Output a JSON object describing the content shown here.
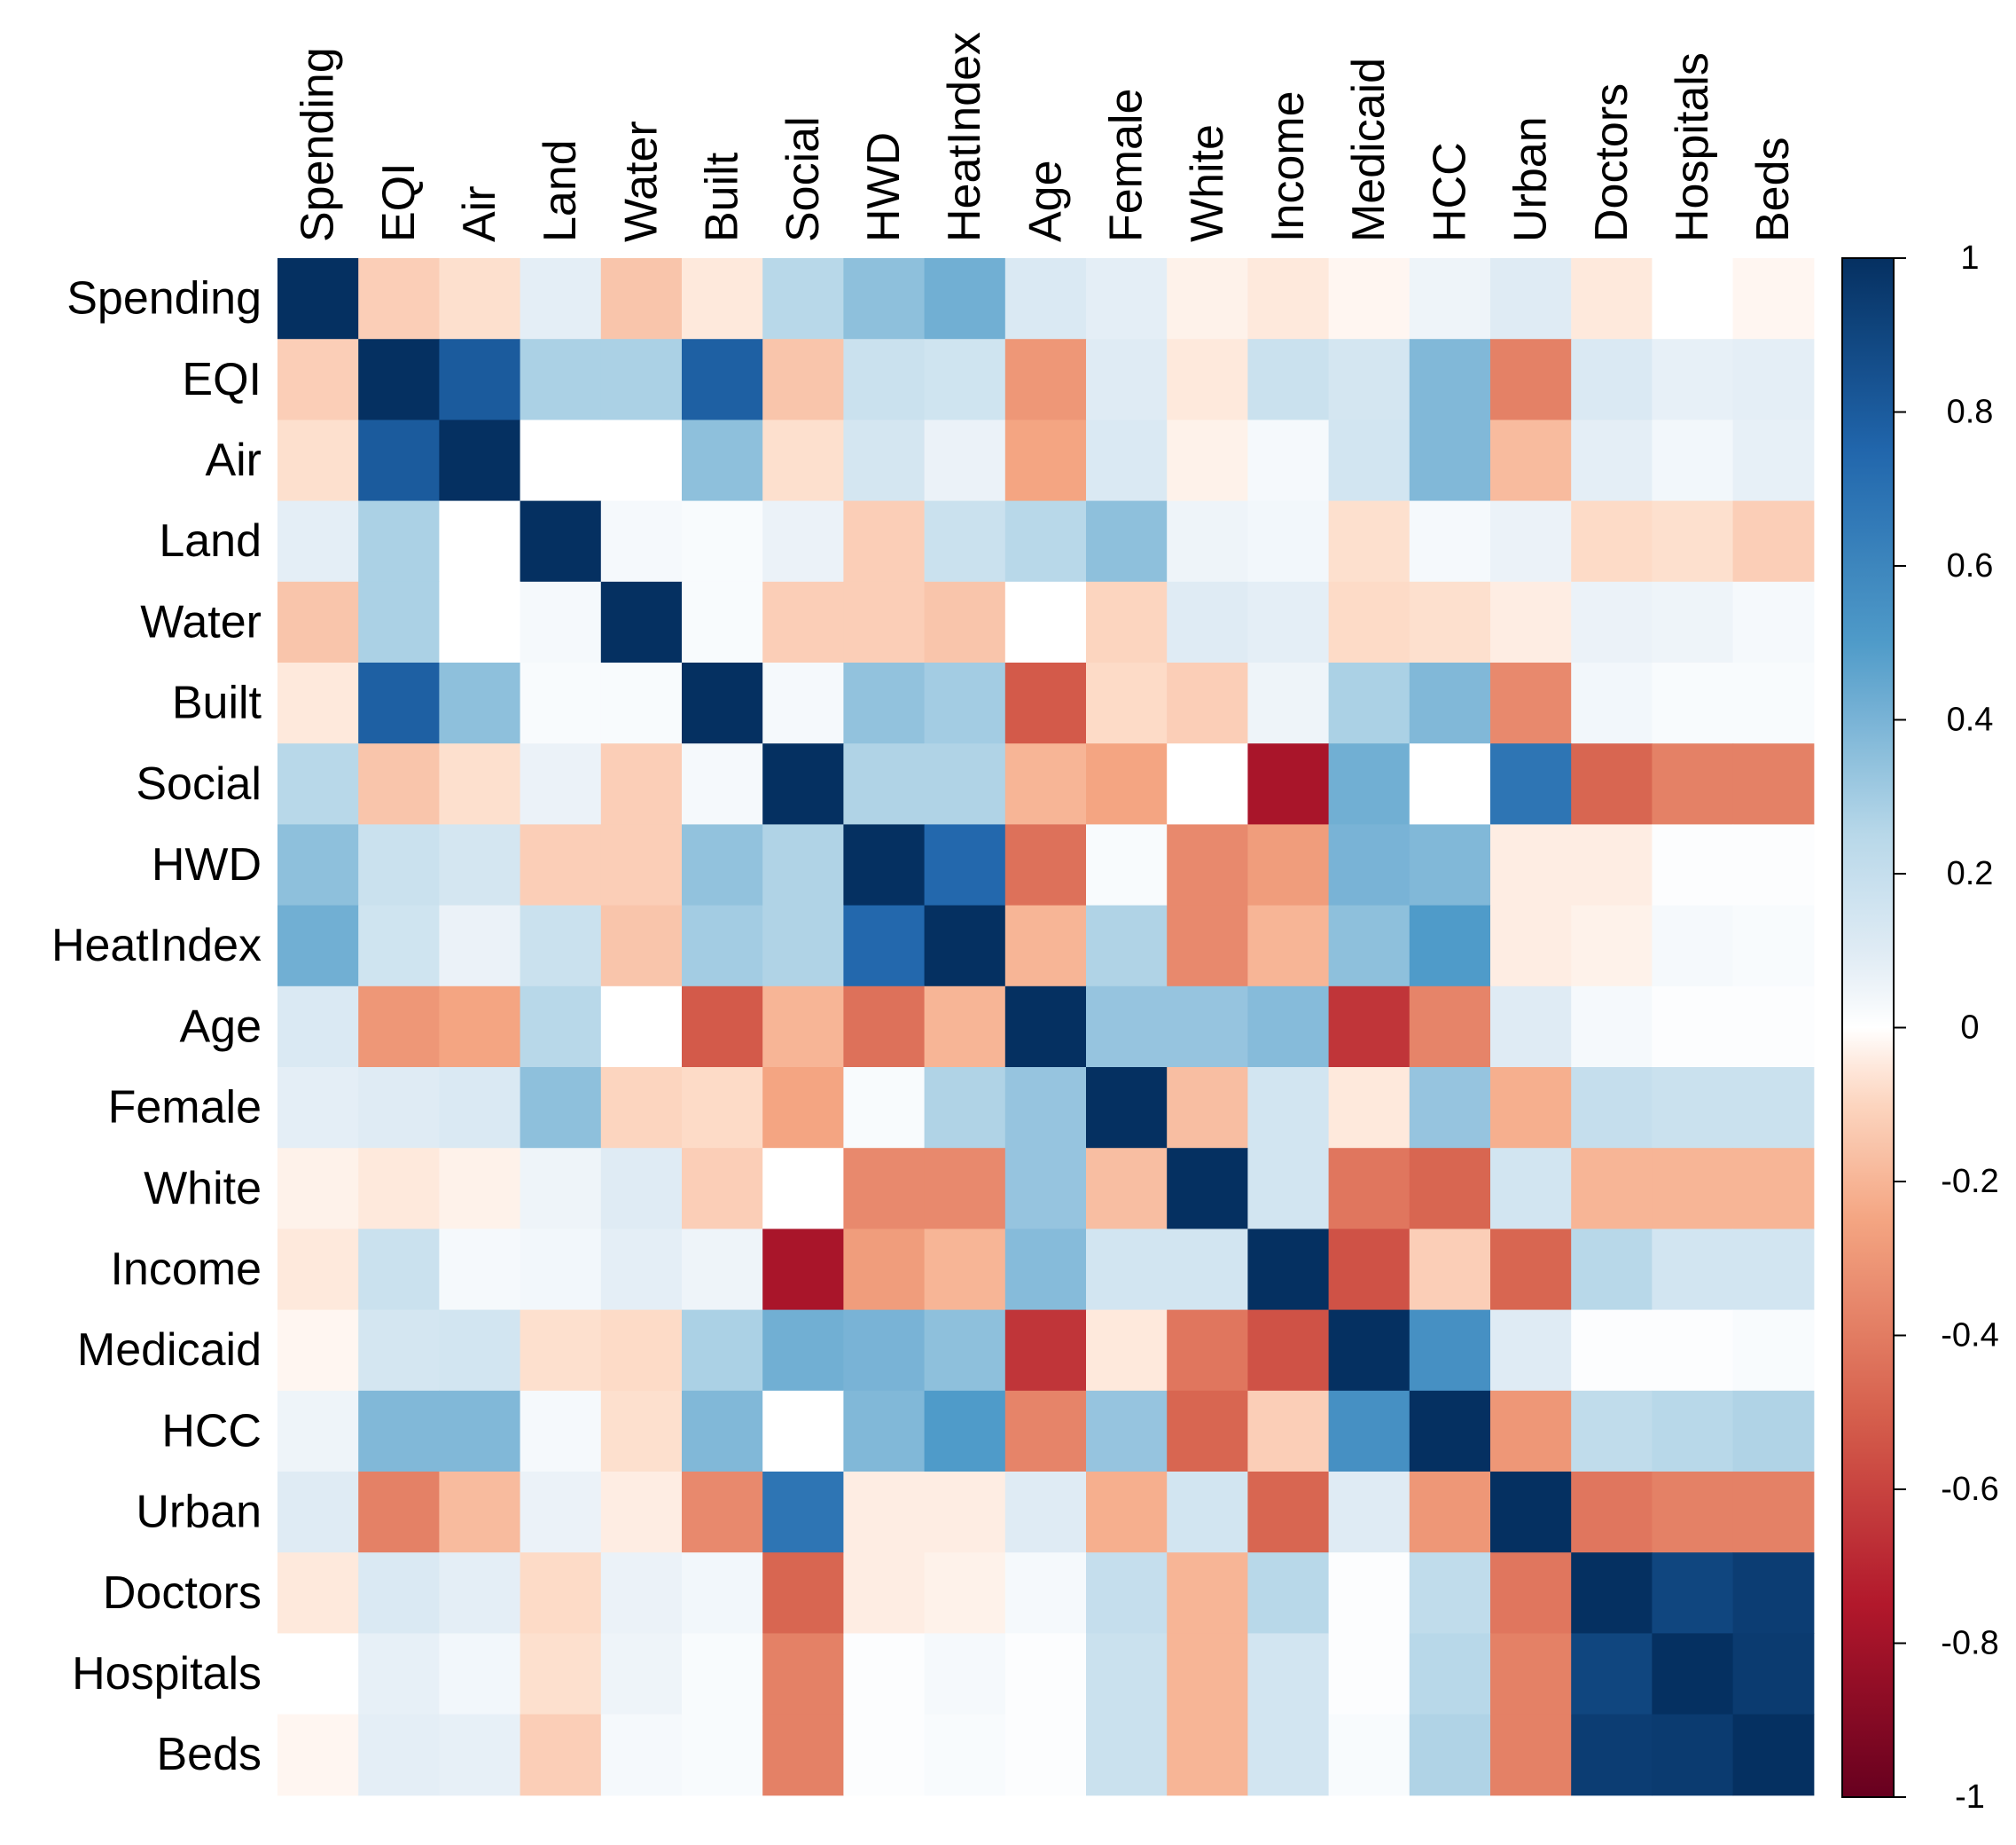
{
  "chart_data": {
    "type": "heatmap",
    "title": "",
    "variables": [
      "Spending",
      "EQI",
      "Air",
      "Land",
      "Water",
      "Built",
      "Social",
      "HWD",
      "HeatIndex",
      "Age",
      "Female",
      "White",
      "Income",
      "Medicaid",
      "HCC",
      "Urban",
      "Doctors",
      "Hospitals",
      "Beds"
    ],
    "matrix": [
      [
        1,
        -0.12,
        -0.07,
        0.08,
        -0.15,
        -0.05,
        0.25,
        0.35,
        0.42,
        0.12,
        0.08,
        -0.03,
        -0.05,
        -0.02,
        0.05,
        0.1,
        -0.05,
        0,
        -0.02
      ],
      [
        -0.12,
        1,
        0.8,
        0.28,
        0.28,
        0.78,
        -0.15,
        0.18,
        0.16,
        -0.3,
        0.1,
        -0.05,
        0.18,
        0.14,
        0.38,
        -0.38,
        0.12,
        0.07,
        0.08
      ],
      [
        -0.07,
        0.8,
        1,
        0,
        0,
        0.35,
        -0.07,
        0.14,
        0.06,
        -0.25,
        0.12,
        -0.03,
        0.03,
        0.15,
        0.38,
        -0.18,
        0.08,
        0.04,
        0.07
      ],
      [
        0.08,
        0.28,
        0,
        1,
        0.03,
        0.02,
        0.06,
        -0.12,
        0.18,
        0.25,
        0.35,
        0.05,
        0.04,
        -0.07,
        0.03,
        0.06,
        -0.08,
        -0.07,
        -0.12
      ],
      [
        -0.15,
        0.28,
        0,
        0.03,
        1,
        0.02,
        -0.12,
        -0.12,
        -0.15,
        0,
        -0.1,
        0.1,
        0.08,
        -0.08,
        -0.07,
        -0.04,
        0.06,
        0.05,
        0.03
      ],
      [
        -0.05,
        0.78,
        0.35,
        0.02,
        0.02,
        1,
        0.03,
        0.34,
        0.3,
        -0.52,
        -0.08,
        -0.12,
        0.05,
        0.28,
        0.38,
        -0.35,
        0.04,
        0.02,
        0.02
      ],
      [
        0.25,
        -0.15,
        -0.07,
        0.06,
        -0.12,
        0.03,
        1,
        0.27,
        0.27,
        -0.2,
        -0.25,
        0,
        -0.78,
        0.42,
        0,
        0.68,
        -0.48,
        -0.38,
        -0.38
      ],
      [
        0.35,
        0.18,
        0.14,
        -0.12,
        -0.12,
        0.34,
        0.27,
        1,
        0.74,
        -0.44,
        0.02,
        -0.35,
        -0.28,
        0.4,
        0.38,
        -0.04,
        -0.04,
        0.01,
        0.01
      ],
      [
        0.42,
        0.16,
        0.06,
        0.18,
        -0.15,
        0.3,
        0.27,
        0.74,
        1,
        -0.2,
        0.27,
        -0.35,
        -0.2,
        0.35,
        0.5,
        -0.04,
        -0.03,
        0.03,
        0.02
      ],
      [
        0.12,
        -0.3,
        -0.25,
        0.25,
        0,
        -0.52,
        -0.2,
        -0.44,
        -0.2,
        1,
        0.33,
        0.33,
        0.37,
        -0.65,
        -0.37,
        0.1,
        0.03,
        0.01,
        0.01
      ],
      [
        0.08,
        0.1,
        0.12,
        0.35,
        -0.1,
        -0.08,
        -0.25,
        0.02,
        0.27,
        0.33,
        1,
        -0.17,
        0.15,
        -0.05,
        0.33,
        -0.22,
        0.2,
        0.18,
        0.18
      ],
      [
        -0.03,
        -0.05,
        -0.03,
        0.05,
        0.1,
        -0.12,
        0,
        -0.35,
        -0.35,
        0.33,
        -0.17,
        1,
        0.15,
        -0.42,
        -0.48,
        0.15,
        -0.2,
        -0.2,
        -0.2
      ],
      [
        -0.05,
        0.18,
        0.03,
        0.04,
        0.08,
        0.05,
        -0.78,
        -0.28,
        -0.2,
        0.37,
        0.15,
        0.15,
        1,
        -0.55,
        -0.12,
        -0.48,
        0.25,
        0.15,
        0.15
      ],
      [
        -0.02,
        0.14,
        0.15,
        -0.07,
        -0.08,
        0.28,
        0.42,
        0.4,
        0.35,
        -0.65,
        -0.05,
        -0.42,
        -0.55,
        1,
        0.55,
        0.1,
        0.01,
        0.01,
        0.02
      ],
      [
        0.05,
        0.38,
        0.38,
        0.03,
        -0.07,
        0.38,
        0,
        0.38,
        0.5,
        -0.37,
        0.33,
        -0.48,
        -0.12,
        0.55,
        1,
        -0.3,
        0.22,
        0.25,
        0.27
      ],
      [
        0.1,
        -0.38,
        -0.18,
        0.06,
        -0.04,
        -0.35,
        0.68,
        -0.04,
        -0.04,
        0.1,
        -0.22,
        0.15,
        -0.48,
        0.1,
        -0.3,
        1,
        -0.42,
        -0.38,
        -0.38
      ],
      [
        -0.05,
        0.12,
        0.08,
        -0.08,
        0.06,
        0.04,
        -0.48,
        -0.04,
        -0.03,
        0.03,
        0.2,
        -0.2,
        0.25,
        0.01,
        0.22,
        -0.42,
        1,
        0.9,
        0.94
      ],
      [
        0,
        0.07,
        0.04,
        -0.07,
        0.05,
        0.02,
        -0.38,
        0.01,
        0.03,
        0.01,
        0.18,
        -0.2,
        0.15,
        0.01,
        0.25,
        -0.38,
        0.9,
        1,
        0.95
      ],
      [
        -0.02,
        0.08,
        0.07,
        -0.12,
        0.03,
        0.02,
        -0.38,
        0.01,
        0.02,
        0.01,
        0.18,
        -0.2,
        0.15,
        0.02,
        0.27,
        -0.38,
        0.94,
        0.95,
        1
      ]
    ],
    "color_scale": {
      "min": -1,
      "max": 1,
      "stops": [
        {
          "value": -1,
          "color": "#67001f"
        },
        {
          "value": -0.75,
          "color": "#b2182b"
        },
        {
          "value": -0.5,
          "color": "#d6604d"
        },
        {
          "value": -0.25,
          "color": "#f4a582"
        },
        {
          "value": -0.08,
          "color": "#fddbc7"
        },
        {
          "value": 0,
          "color": "#ffffff"
        },
        {
          "value": 0.08,
          "color": "#e4eef6"
        },
        {
          "value": 0.25,
          "color": "#b8d8e9"
        },
        {
          "value": 0.5,
          "color": "#4f9bc9"
        },
        {
          "value": 0.75,
          "color": "#2166ac"
        },
        {
          "value": 1,
          "color": "#053061"
        }
      ],
      "ticks": [
        "1",
        "0.8",
        "0.6",
        "0.4",
        "0.2",
        "0",
        "-0.2",
        "-0.4",
        "-0.6",
        "-0.8",
        "-1"
      ]
    },
    "legend": "right"
  }
}
